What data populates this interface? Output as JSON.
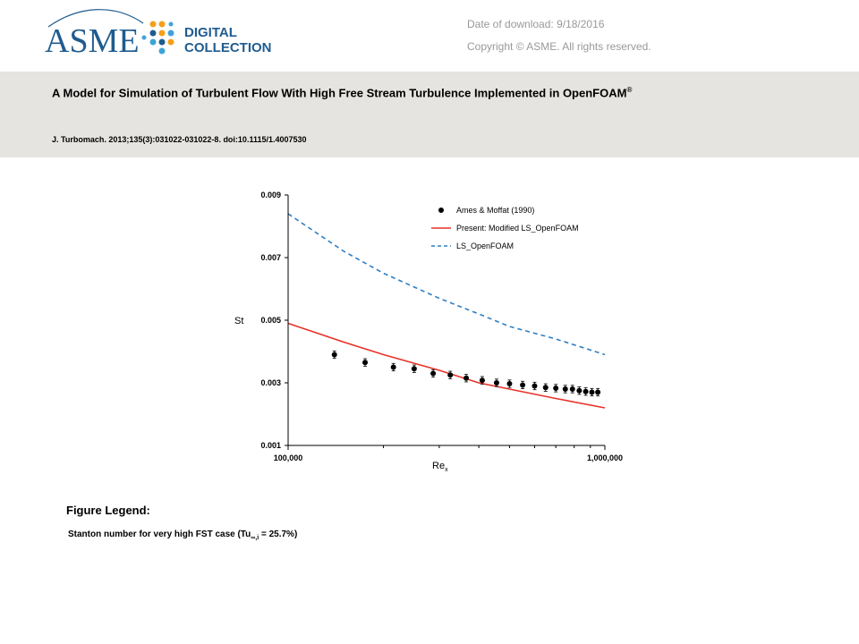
{
  "header": {
    "logo_text": "ASME",
    "logo_sub_1": "DIGITAL",
    "logo_sub_2": "COLLECTION",
    "download_date": "Date of download:  9/18/2016",
    "copyright": "Copyright © ASME. All rights reserved."
  },
  "article": {
    "title": "A Model for Simulation of Turbulent Flow With High Free Stream Turbulence Implemented in OpenFOAM",
    "title_mark": "®",
    "citation": "J. Turbomach. 2013;135(3):031022-031022-8. doi:10.1115/1.4007530"
  },
  "figure": {
    "legend_heading": "Figure Legend:",
    "caption_pre": "Stanton number for very high FST case (Tu",
    "caption_sub": "∞,i",
    "caption_post": " = 25.7%)"
  },
  "chart_data": {
    "type": "scatter",
    "xscale": "log",
    "xlim": [
      100000,
      1000000
    ],
    "ylim": [
      0.001,
      0.009
    ],
    "xlabel": "Re",
    "xlabel_sub": "x",
    "ylabel": "St",
    "xticks": [
      "100,000",
      "1,000,000"
    ],
    "yticks": [
      "0.001",
      "0.003",
      "0.005",
      "0.007",
      "0.009"
    ],
    "legend_position": "top-right",
    "series": [
      {
        "name": "Ames & Moffat (1990)",
        "kind": "points",
        "color": "#000000",
        "x": [
          140000,
          175000,
          215000,
          250000,
          287000,
          325000,
          365000,
          410000,
          455000,
          500000,
          550000,
          600000,
          650000,
          700000,
          750000,
          790000,
          830000,
          870000,
          910000,
          950000
        ],
        "y": [
          0.0039,
          0.00365,
          0.0035,
          0.00345,
          0.0033,
          0.00325,
          0.00315,
          0.00308,
          0.003,
          0.00297,
          0.00293,
          0.0029,
          0.00285,
          0.00283,
          0.0028,
          0.0028,
          0.00275,
          0.00272,
          0.0027,
          0.0027
        ],
        "yerr": 0.00012
      },
      {
        "name": "Present: Modified LS_OpenFOAM",
        "kind": "line",
        "color": "#e8312a",
        "x": [
          100000,
          150000,
          200000,
          300000,
          400000,
          500000,
          700000,
          1000000
        ],
        "y": [
          0.0049,
          0.0043,
          0.0039,
          0.0034,
          0.003,
          0.0028,
          0.0025,
          0.0022
        ]
      },
      {
        "name": "LS_OpenFOAM",
        "kind": "dashed",
        "color": "#2f7ec3",
        "x": [
          100000,
          150000,
          200000,
          300000,
          400000,
          500000,
          700000,
          1000000
        ],
        "y": [
          0.0084,
          0.0072,
          0.0065,
          0.0057,
          0.0052,
          0.0048,
          0.0044,
          0.0039
        ]
      }
    ]
  }
}
